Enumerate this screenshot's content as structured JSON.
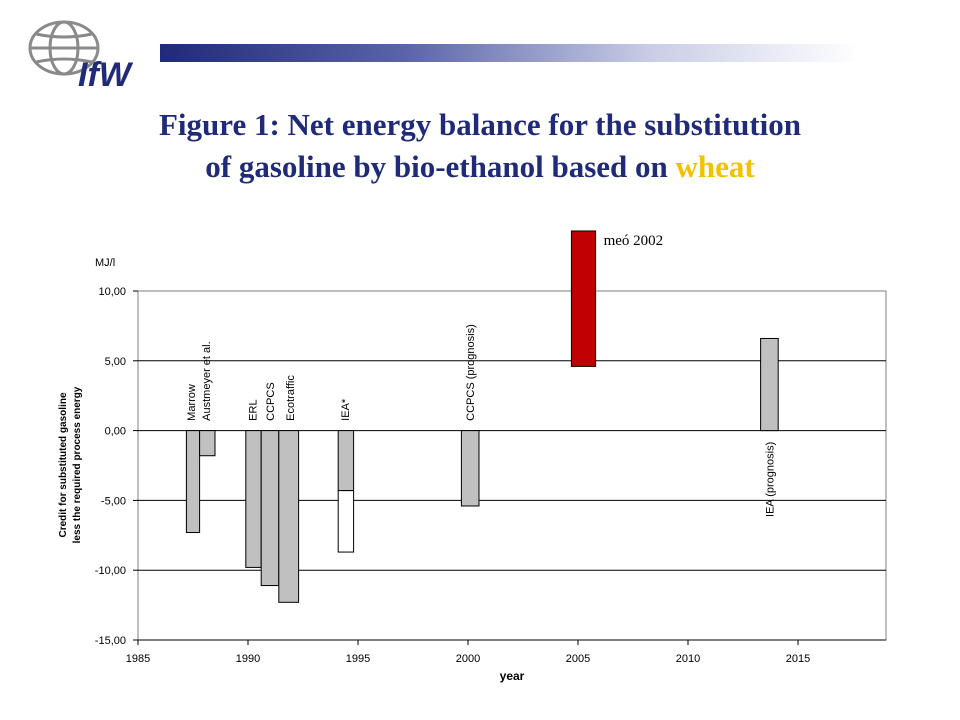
{
  "title": {
    "line1": "Figure 1: Net energy balance for the substitution",
    "line2_prefix": "of gasoline by bio-ethanol based on ",
    "line2_highlight": "wheat"
  },
  "logo": {
    "text": "IfW",
    "icon": "globe-icon"
  },
  "colors": {
    "title": "#1f2a78",
    "highlight": "#f2c200",
    "bar_gray": "#c0c0c0",
    "bar_red": "#c00000"
  },
  "chart_data": {
    "type": "bar",
    "title": "",
    "xlabel": "year",
    "ylabel_lines": [
      "Credit for substituted gasoline",
      "less the required process energy"
    ],
    "unit": "MJ/l",
    "xlim": [
      1985,
      2019
    ],
    "ylim": [
      -15,
      10
    ],
    "x_ticks": [
      "1985",
      "1990",
      "1995",
      "2000",
      "2005",
      "2010",
      "2015"
    ],
    "y_ticks": [
      "10,00",
      "5,00",
      "0,00",
      "-5,00",
      "-10,00",
      "-15,00"
    ],
    "y_tick_values": [
      10,
      5,
      0,
      -5,
      -10,
      -15
    ],
    "grid": true,
    "bars": [
      {
        "label": "Marrow",
        "x_start": 1987.2,
        "x_end": 1987.8,
        "low": -7.3,
        "high": 0,
        "color": "#c0c0c0"
      },
      {
        "label": "Austmeyer et al.",
        "x_start": 1987.8,
        "x_end": 1988.5,
        "low": -1.8,
        "high": 0,
        "color": "#c0c0c0"
      },
      {
        "label": "ERL",
        "x_start": 1989.9,
        "x_end": 1990.6,
        "low": -9.8,
        "high": 0,
        "color": "#c0c0c0"
      },
      {
        "label": "CCPCS",
        "x_start": 1990.6,
        "x_end": 1991.4,
        "low": -11.1,
        "high": 0,
        "color": "#c0c0c0"
      },
      {
        "label": "Ecotraffic",
        "x_start": 1991.4,
        "x_end": 1992.3,
        "low": -12.3,
        "high": 0,
        "color": "#c0c0c0"
      },
      {
        "label": "IEA*",
        "x_start": 1994.1,
        "x_end": 1994.8,
        "low": -4.3,
        "high": 0,
        "color": "#c0c0c0"
      },
      {
        "label": "",
        "x_start": 1994.1,
        "x_end": 1994.8,
        "low": -8.7,
        "high": -4.3,
        "color": "#ffffff"
      },
      {
        "label": "CCPCS (prognosis)",
        "x_start": 1999.7,
        "x_end": 2000.5,
        "low": -5.4,
        "high": 0,
        "color": "#c0c0c0"
      },
      {
        "label": "meó 2002",
        "x_start": 2004.7,
        "x_end": 2005.8,
        "low": 4.6,
        "high": 14.3,
        "color": "#c00000"
      },
      {
        "label": "IEA (prognosis)",
        "x_start": 2013.3,
        "x_end": 2014.1,
        "low": 0,
        "high": 6.6,
        "color": "#c0c0c0"
      }
    ]
  }
}
